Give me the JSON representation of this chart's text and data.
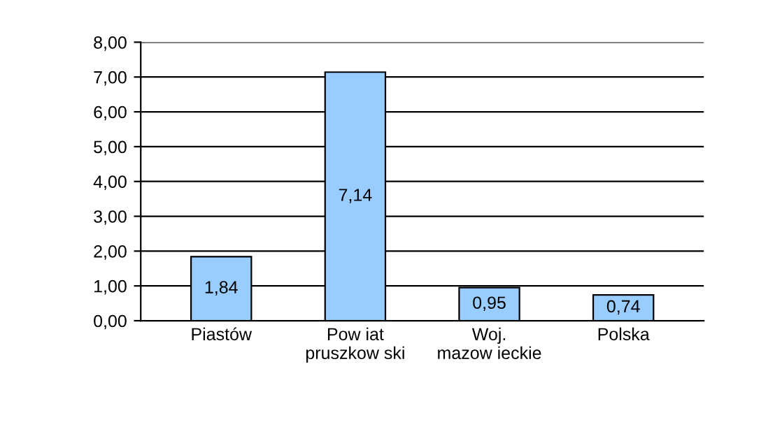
{
  "chart_data": {
    "type": "bar",
    "categories": [
      "Piastów",
      "Pow iat\npruszkow ski",
      "Woj.\nmazow ieckie",
      "Polska"
    ],
    "values": [
      1.84,
      7.14,
      0.95,
      0.74
    ],
    "value_labels": [
      "1,84",
      "7,14",
      "0,95",
      "0,74"
    ],
    "color": "#99ccff",
    "ylim": [
      0,
      8
    ],
    "yticks": [
      {
        "value": 0,
        "label": "0,00"
      },
      {
        "value": 1,
        "label": "1,00"
      },
      {
        "value": 2,
        "label": "2,00"
      },
      {
        "value": 3,
        "label": "3,00"
      },
      {
        "value": 4,
        "label": "4,00"
      },
      {
        "value": 5,
        "label": "5,00"
      },
      {
        "value": 6,
        "label": "6,00"
      },
      {
        "value": 7,
        "label": "7,00"
      },
      {
        "value": 8,
        "label": "8,00"
      }
    ],
    "grid": "y"
  }
}
